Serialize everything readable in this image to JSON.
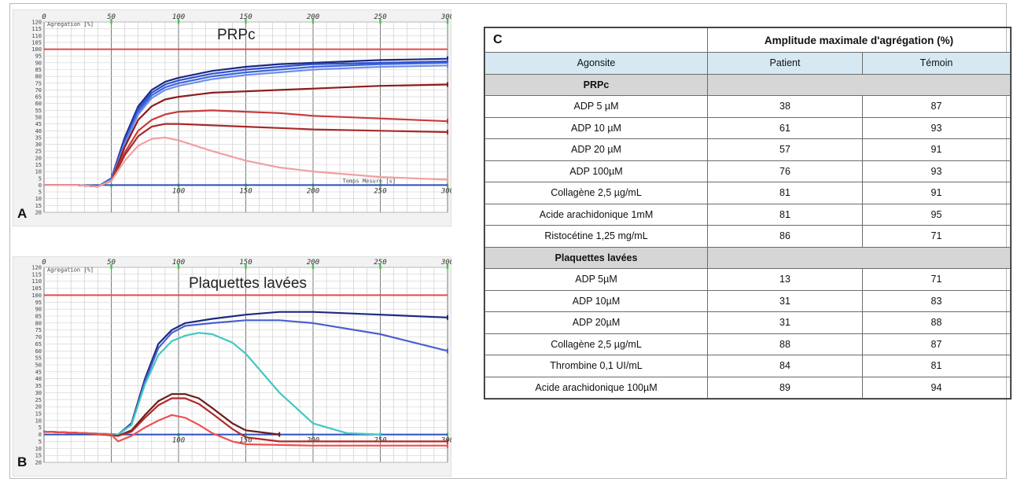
{
  "charts": {
    "A": {
      "panel_letter": "A",
      "title": "PRPc",
      "y_label": "Agregation [%]",
      "x_label": "Temps Mesure [s]",
      "x_ticks_top": [
        "0",
        "50",
        "100",
        "150",
        "200",
        "250",
        "300"
      ],
      "x_ticks_bottom": [
        "100",
        "150",
        "200",
        "250",
        "300"
      ],
      "y_ticks": [
        "120",
        "115",
        "110",
        "105",
        "100",
        "95",
        "90",
        "85",
        "80",
        "75",
        "70",
        "65",
        "60",
        "55",
        "50",
        "45",
        "40",
        "35",
        "30",
        "25",
        "20",
        "15",
        "10",
        "5",
        "0",
        "-5",
        "-10",
        "-15",
        "-20"
      ]
    },
    "B": {
      "panel_letter": "B",
      "title": "Plaquettes lavées",
      "y_label": "Agregation [%]",
      "x_ticks_top": [
        "0",
        "50",
        "100",
        "150",
        "200",
        "250",
        "300"
      ],
      "x_ticks_bottom": [
        "100",
        "150",
        "200",
        "250",
        "300"
      ],
      "y_ticks": [
        "120",
        "115",
        "110",
        "105",
        "100",
        "95",
        "90",
        "85",
        "80",
        "75",
        "70",
        "65",
        "60",
        "55",
        "50",
        "45",
        "40",
        "35",
        "30",
        "25",
        "20",
        "15",
        "10",
        "5",
        "0",
        "-5",
        "-10",
        "-15",
        "-20"
      ]
    }
  },
  "chart_data": [
    {
      "type": "line",
      "panel": "A",
      "title": "PRPc",
      "xlim": [
        0,
        300
      ],
      "ylim": [
        -20,
        120
      ],
      "reference_lines": [
        {
          "y": 100,
          "color": "#e34a4a"
        },
        {
          "y": 0,
          "color": "#2c4fb8"
        }
      ],
      "series": [
        {
          "color": "#1b2a80",
          "x": [
            0,
            25,
            40,
            50,
            60,
            70,
            80,
            90,
            100,
            125,
            150,
            175,
            200,
            250,
            300
          ],
          "y": [
            0,
            0,
            -1,
            5,
            35,
            58,
            70,
            76,
            79,
            84,
            87,
            89,
            90,
            92,
            93
          ]
        },
        {
          "color": "#2f4fd0",
          "x": [
            0,
            25,
            40,
            50,
            60,
            70,
            80,
            90,
            100,
            125,
            150,
            175,
            200,
            250,
            300
          ],
          "y": [
            0,
            0,
            -1,
            5,
            33,
            56,
            68,
            74,
            77,
            82,
            85,
            87,
            89,
            90,
            91
          ]
        },
        {
          "color": "#3a66d8",
          "x": [
            0,
            25,
            40,
            50,
            60,
            70,
            80,
            90,
            100,
            125,
            150,
            175,
            200,
            250,
            300
          ],
          "y": [
            0,
            0,
            -1,
            4,
            31,
            54,
            66,
            72,
            75,
            80,
            83,
            85,
            87,
            89,
            90
          ]
        },
        {
          "color": "#6f8ee8",
          "x": [
            0,
            25,
            40,
            50,
            60,
            70,
            80,
            90,
            100,
            125,
            150,
            175,
            200,
            250,
            300
          ],
          "y": [
            0,
            0,
            -1,
            4,
            30,
            52,
            64,
            70,
            73,
            78,
            81,
            83,
            85,
            87,
            88
          ]
        },
        {
          "color": "#8e1a1a",
          "x": [
            0,
            25,
            40,
            50,
            60,
            70,
            80,
            90,
            100,
            125,
            150,
            175,
            200,
            250,
            300
          ],
          "y": [
            0,
            0,
            -1,
            3,
            28,
            48,
            58,
            63,
            65,
            68,
            69,
            70,
            71,
            73,
            74
          ]
        },
        {
          "color": "#c83a3a",
          "x": [
            0,
            25,
            40,
            50,
            60,
            70,
            80,
            90,
            100,
            125,
            150,
            175,
            200,
            250,
            300
          ],
          "y": [
            0,
            0,
            -1,
            3,
            24,
            40,
            48,
            52,
            54,
            55,
            54,
            53,
            51,
            49,
            47
          ]
        },
        {
          "color": "#a82a2a",
          "x": [
            0,
            25,
            40,
            50,
            60,
            70,
            80,
            90,
            100,
            125,
            150,
            175,
            200,
            250,
            300
          ],
          "y": [
            0,
            0,
            -1,
            3,
            22,
            36,
            43,
            45,
            45,
            44,
            43,
            42,
            41,
            40,
            39
          ]
        },
        {
          "color": "#f0a0a0",
          "x": [
            0,
            25,
            40,
            50,
            60,
            70,
            80,
            90,
            100,
            125,
            150,
            175,
            200,
            250,
            300
          ],
          "y": [
            0,
            0,
            -1,
            3,
            18,
            29,
            34,
            35,
            33,
            25,
            18,
            13,
            10,
            6,
            4
          ]
        }
      ]
    },
    {
      "type": "line",
      "panel": "B",
      "title": "Plaquettes lavées",
      "xlim": [
        0,
        300
      ],
      "ylim": [
        -20,
        120
      ],
      "reference_lines": [
        {
          "y": 100,
          "color": "#e34a4a"
        },
        {
          "y": 0,
          "color": "#2c4fb8"
        }
      ],
      "series": [
        {
          "color": "#1b2a80",
          "x": [
            0,
            30,
            55,
            65,
            75,
            85,
            95,
            105,
            125,
            150,
            175,
            200,
            250,
            300
          ],
          "y": [
            2,
            1,
            0,
            8,
            40,
            65,
            75,
            80,
            83,
            86,
            88,
            88,
            86,
            84
          ]
        },
        {
          "color": "#4a60d0",
          "x": [
            0,
            30,
            55,
            65,
            75,
            85,
            95,
            105,
            125,
            150,
            175,
            200,
            250,
            300
          ],
          "y": [
            2,
            1,
            0,
            7,
            38,
            62,
            73,
            78,
            80,
            82,
            82,
            80,
            72,
            60
          ]
        },
        {
          "color": "#40c8c0",
          "x": [
            0,
            30,
            55,
            65,
            75,
            85,
            95,
            105,
            115,
            125,
            140,
            150,
            175,
            200,
            225,
            250
          ],
          "y": [
            2,
            1,
            0,
            7,
            36,
            57,
            67,
            71,
            73,
            72,
            66,
            58,
            30,
            8,
            1,
            0
          ]
        },
        {
          "color": "#6b1a1a",
          "x": [
            0,
            30,
            55,
            65,
            75,
            85,
            95,
            105,
            115,
            125,
            140,
            150,
            175
          ],
          "y": [
            2,
            1,
            -1,
            3,
            14,
            24,
            29,
            29,
            26,
            19,
            8,
            3,
            0
          ]
        },
        {
          "color": "#b02a2a",
          "x": [
            0,
            30,
            55,
            65,
            75,
            85,
            95,
            105,
            115,
            125,
            140,
            150,
            175,
            200,
            300
          ],
          "y": [
            2,
            1,
            -1,
            2,
            12,
            21,
            26,
            26,
            22,
            15,
            4,
            -2,
            -5,
            -5,
            -5
          ]
        },
        {
          "color": "#ee5050",
          "x": [
            0,
            30,
            50,
            55,
            65,
            75,
            85,
            95,
            105,
            115,
            125,
            140,
            150,
            200,
            250,
            300
          ],
          "y": [
            2,
            1,
            0,
            -5,
            -1,
            5,
            10,
            14,
            12,
            7,
            1,
            -5,
            -7,
            -8,
            -8,
            -8
          ]
        }
      ]
    }
  ],
  "table": {
    "panel_letter": "C",
    "header": "Amplitude maximale d'agrégation (%)",
    "columns": [
      "Agonsite",
      "Patient",
      "Témoin"
    ],
    "sections": [
      {
        "title": "PRPc",
        "rows": [
          [
            "ADP 5 µM",
            "38",
            "87"
          ],
          [
            "ADP 10 µM",
            "61",
            "93"
          ],
          [
            "ADP 20 µM",
            "57",
            "91"
          ],
          [
            "ADP 100µM",
            "76",
            "93"
          ],
          [
            "Collagène 2,5 µg/mL",
            "81",
            "91"
          ],
          [
            "Acide arachidonique 1mM",
            "81",
            "95"
          ],
          [
            "Ristocétine 1,25 mg/mL",
            "86",
            "71"
          ]
        ]
      },
      {
        "title": "Plaquettes lavées",
        "rows": [
          [
            "ADP 5µM",
            "13",
            "71"
          ],
          [
            "ADP 10µM",
            "31",
            "83"
          ],
          [
            "ADP 20µM",
            "31",
            "88"
          ],
          [
            "Collagène 2,5 µg/mL",
            "88",
            "87"
          ],
          [
            "Thrombine 0,1 UI/mL",
            "84",
            "81"
          ],
          [
            "Acide arachidonique 100µM",
            "89",
            "94"
          ]
        ]
      }
    ]
  }
}
